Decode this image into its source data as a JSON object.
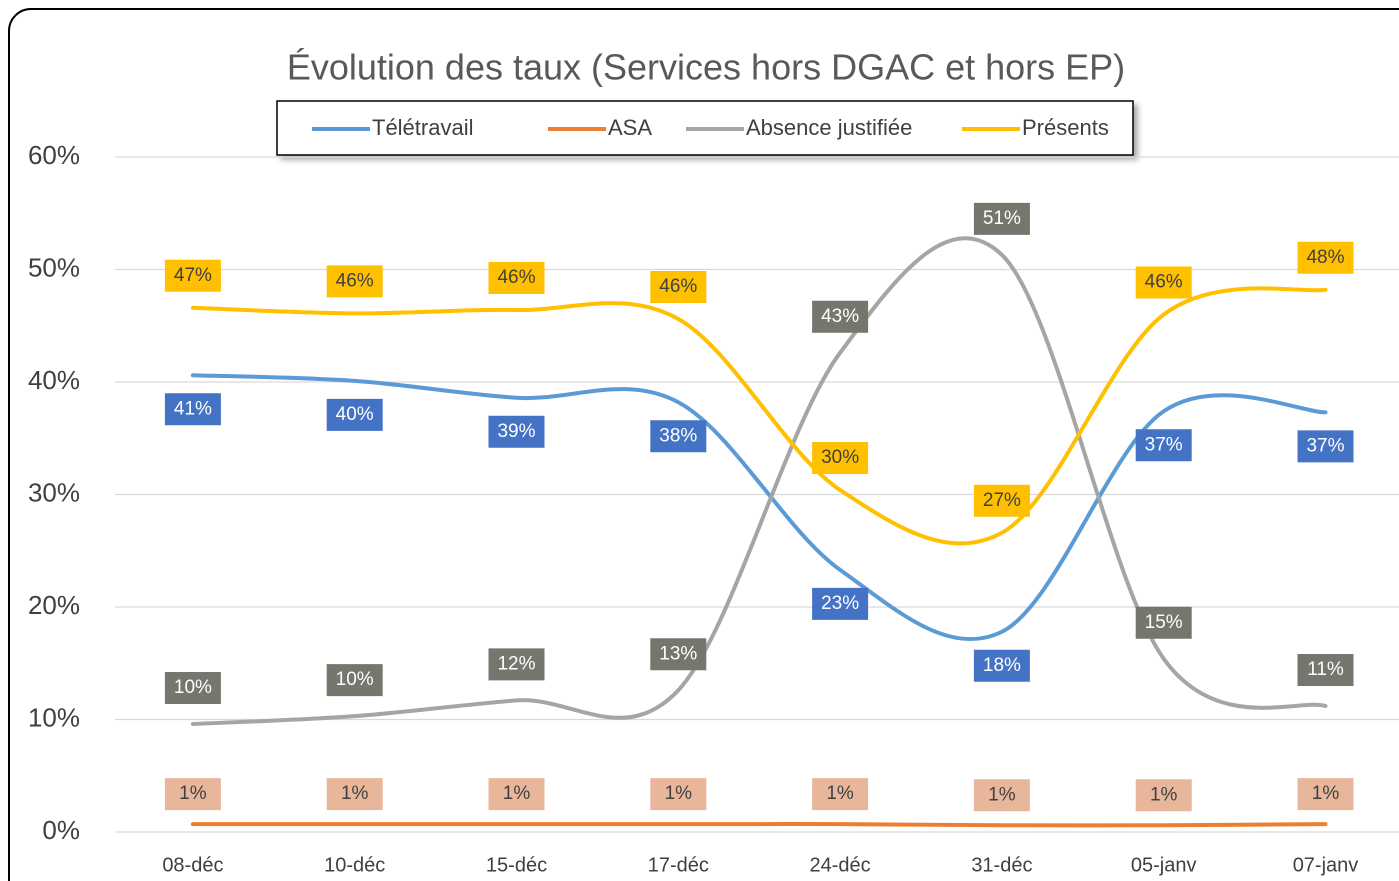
{
  "chart_data": {
    "type": "line",
    "title": "Évolution des taux (Services hors DGAC et hors EP)",
    "categories": [
      "08-déc",
      "10-déc",
      "15-déc",
      "17-déc",
      "24-déc",
      "31-déc",
      "05-janv",
      "07-janv"
    ],
    "series": [
      {
        "name": "Télétravail",
        "color": "#5b9bd5",
        "label_color": "#4472c4",
        "label_text": "#ffffff",
        "values": [
          40.6,
          40.1,
          38.6,
          38.2,
          23.3,
          17.8,
          37.4,
          37.3
        ],
        "value_labels": [
          "41%",
          "40%",
          "39%",
          "38%",
          "23%",
          "18%",
          "37%",
          "37%"
        ]
      },
      {
        "name": "ASA",
        "color": "#ed7d31",
        "label_color": "#e8b79b",
        "label_text": "#404040",
        "values": [
          0.7,
          0.7,
          0.7,
          0.7,
          0.7,
          0.6,
          0.6,
          0.7
        ],
        "value_labels": [
          "1%",
          "1%",
          "1%",
          "1%",
          "1%",
          "1%",
          "1%",
          "1%"
        ]
      },
      {
        "name": "Absence justifiée",
        "color": "#a5a5a5",
        "label_color": "#76766e",
        "label_text": "#ffffff",
        "values": [
          9.6,
          10.3,
          11.7,
          12.6,
          42.6,
          51.3,
          15.4,
          11.2
        ],
        "value_labels": [
          "10%",
          "10%",
          "12%",
          "13%",
          "43%",
          "51%",
          "15%",
          "11%"
        ]
      },
      {
        "name": "Présents",
        "color": "#ffc000",
        "label_color": "#ffc000",
        "label_text": "#404040",
        "values": [
          46.6,
          46.1,
          46.4,
          45.6,
          30.4,
          26.6,
          46.0,
          48.2
        ],
        "value_labels": [
          "47%",
          "46%",
          "46%",
          "46%",
          "30%",
          "27%",
          "46%",
          "48%"
        ]
      }
    ],
    "ylim": [
      0,
      60
    ],
    "yticks": [
      {
        "value": 0,
        "label": "0%"
      },
      {
        "value": 10,
        "label": "10%"
      },
      {
        "value": 20,
        "label": "20%"
      },
      {
        "value": 30,
        "label": "30%"
      },
      {
        "value": 40,
        "label": "40%"
      },
      {
        "value": 50,
        "label": "50%"
      },
      {
        "value": 60,
        "label": "60%"
      }
    ],
    "grid": true,
    "legend": "top"
  }
}
